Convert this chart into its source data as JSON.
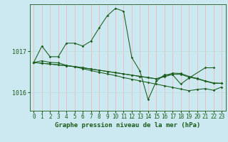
{
  "background_color": "#cce8f0",
  "grid_color_v": "#f0b0b0",
  "grid_color_h": "#b8ddd8",
  "line_color": "#1a5c1a",
  "xlabel": "Graphe pression niveau de la mer (hPa)",
  "xlabel_fontsize": 6.5,
  "tick_fontsize": 5.5,
  "ytick_labels": [
    "1016",
    "1017"
  ],
  "ytick_values": [
    1016.0,
    1017.0
  ],
  "ylim": [
    1015.55,
    1018.15
  ],
  "xlim": [
    -0.5,
    23.5
  ],
  "s1_x": [
    0,
    1,
    2,
    3,
    4,
    5,
    6,
    7,
    8,
    9,
    10,
    11,
    12,
    13,
    14,
    15,
    16,
    17,
    18,
    19,
    21,
    22
  ],
  "s1_y": [
    1016.73,
    1017.13,
    1016.87,
    1016.87,
    1017.2,
    1017.2,
    1017.13,
    1017.25,
    1017.57,
    1017.87,
    1018.05,
    1017.98,
    1016.85,
    1016.52,
    1015.82,
    1016.27,
    1016.43,
    1016.43,
    1016.2,
    1016.35,
    1016.6,
    1016.6
  ],
  "s2_x": [
    0,
    1,
    2,
    3,
    4,
    5,
    6,
    7,
    8,
    9,
    10,
    11,
    12,
    13,
    14,
    15,
    16,
    17,
    18,
    19,
    20,
    21,
    22,
    23
  ],
  "s2_y": [
    1016.73,
    1016.77,
    1016.73,
    1016.72,
    1016.66,
    1016.62,
    1016.58,
    1016.53,
    1016.49,
    1016.45,
    1016.41,
    1016.36,
    1016.32,
    1016.28,
    1016.24,
    1016.2,
    1016.16,
    1016.12,
    1016.08,
    1016.04,
    1016.07,
    1016.09,
    1016.05,
    1016.13
  ],
  "s3_x": [
    0,
    1,
    2,
    3,
    4,
    5,
    6,
    7,
    8,
    9,
    10,
    11,
    12,
    13,
    14,
    15,
    16,
    17,
    18,
    19,
    20,
    21,
    22,
    23
  ],
  "s3_y": [
    1016.73,
    1016.71,
    1016.69,
    1016.67,
    1016.65,
    1016.63,
    1016.6,
    1016.57,
    1016.54,
    1016.51,
    1016.48,
    1016.45,
    1016.42,
    1016.39,
    1016.36,
    1016.33,
    1016.38,
    1016.44,
    1016.44,
    1016.37,
    1016.33,
    1016.27,
    1016.22,
    1016.22
  ],
  "s4_x": [
    0,
    1,
    2,
    3,
    4,
    5,
    6,
    7,
    8,
    9,
    10,
    11,
    12,
    13,
    14,
    15,
    16,
    17,
    18,
    19,
    20,
    21,
    22,
    23
  ],
  "s4_y": [
    1016.73,
    1016.71,
    1016.69,
    1016.67,
    1016.65,
    1016.63,
    1016.6,
    1016.57,
    1016.54,
    1016.51,
    1016.48,
    1016.45,
    1016.42,
    1016.39,
    1016.36,
    1016.33,
    1016.4,
    1016.47,
    1016.46,
    1016.39,
    1016.34,
    1016.28,
    1016.23,
    1016.22
  ]
}
